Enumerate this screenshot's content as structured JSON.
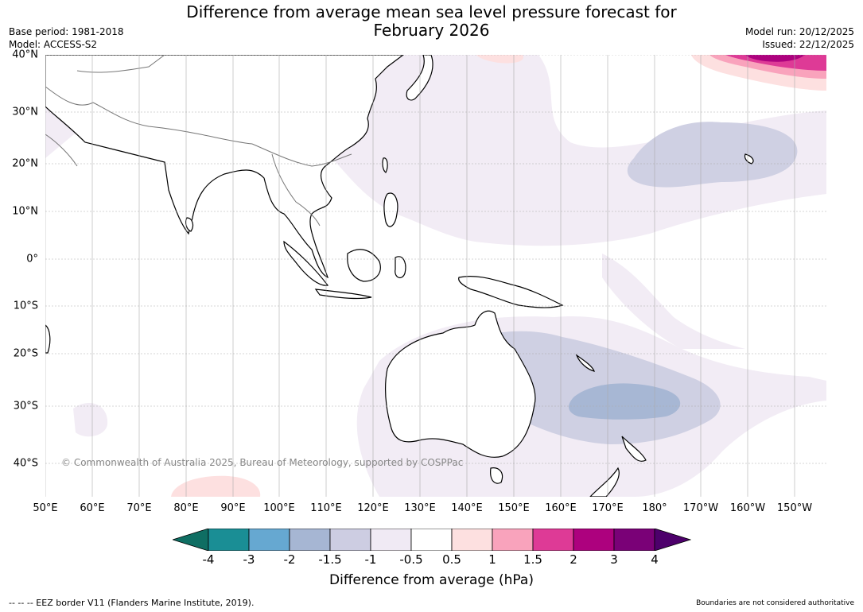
{
  "header": {
    "title_line1": "Difference from average mean sea level pressure forecast for",
    "title_line2": "February 2026",
    "base_period": "Base period: 1981-2018",
    "model": "Model: ACCESS-S2",
    "model_run": "Model run: 20/12/2025",
    "issued": "Issued: 22/12/2025"
  },
  "map": {
    "lon_labels": [
      "50°E",
      "60°E",
      "70°E",
      "80°E",
      "90°E",
      "100°E",
      "110°E",
      "120°E",
      "130°E",
      "140°E",
      "150°E",
      "160°E",
      "170°E",
      "180°",
      "170°W",
      "160°W",
      "150°W"
    ],
    "lat_labels": [
      "40°N",
      "30°N",
      "20°N",
      "10°N",
      "0°",
      "10°S",
      "20°S",
      "30°S",
      "40°S"
    ],
    "copyright": "© Commonwealth of Australia 2025, Bureau of Meteorology, supported by COSPPac"
  },
  "colorbar": {
    "ticks": [
      "-4",
      "-3",
      "-2",
      "-1.5",
      "-1",
      "-0.5",
      "0.5",
      "1",
      "1.5",
      "2",
      "3",
      "4"
    ],
    "colors": [
      "#0f6e63",
      "#1a8e95",
      "#66a8d1",
      "#a6b6d3",
      "#cdcde2",
      "#f0eaf4",
      "#ffffff",
      "#fde0e0",
      "#f9a3bc",
      "#de3a96",
      "#ad017e",
      "#7a0177",
      "#4d006b"
    ],
    "title": "Difference from average (hPa)"
  },
  "footer": {
    "eez_note": "--  --  -- EEZ border V11 (Flanders Marine Institute, 2019).",
    "disclaimer": "Boundaries are not considered authoritative"
  }
}
